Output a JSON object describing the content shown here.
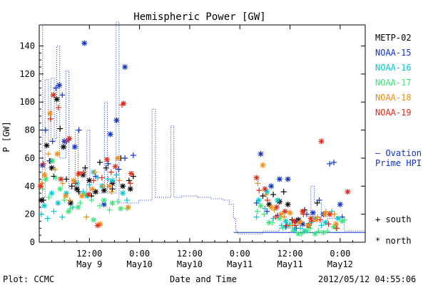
{
  "chart_data": {
    "type": "scatter",
    "title": "Hemispheric Power [GW]",
    "ylabel": "P [GW]",
    "xlabel": "Date and Time",
    "ylim": [
      0,
      155
    ],
    "yticks": [
      0,
      20,
      40,
      60,
      80,
      100,
      120,
      140
    ],
    "xlim_hours": [
      0,
      78
    ],
    "xticks": [
      {
        "hour": 12,
        "time": "12:00",
        "date": "May 9"
      },
      {
        "hour": 24,
        "time": "0:00",
        "date": "May10"
      },
      {
        "hour": 36,
        "time": "12:00",
        "date": "May10"
      },
      {
        "hour": 48,
        "time": "0:00",
        "date": "May11"
      },
      {
        "hour": 60,
        "time": "12:00",
        "date": "May11"
      },
      {
        "hour": 72,
        "time": "0:00",
        "date": "May12"
      }
    ],
    "footer_left": "Plot: CCMC",
    "footer_right": "2012/05/12 04:55:06",
    "ovation_label_1": "— Ovation",
    "ovation_label_2": "Prime HPI",
    "marker_south_label": "+ south",
    "marker_north_label": "* north",
    "series": [
      {
        "name": "METP-02",
        "color": "#000000",
        "south": [
          [
            1.0,
            30
          ],
          [
            2.5,
            58
          ],
          [
            3.5,
            47
          ],
          [
            5.0,
            81
          ],
          [
            6.5,
            45
          ],
          [
            7.8,
            40
          ],
          [
            9.5,
            36
          ],
          [
            11.0,
            53
          ],
          [
            12.5,
            33
          ],
          [
            14.5,
            57
          ],
          [
            16.0,
            53
          ],
          [
            17.5,
            38
          ],
          [
            19.5,
            60
          ],
          [
            21.5,
            44
          ],
          [
            22.5,
            47
          ],
          [
            53.5,
            33
          ],
          [
            56.0,
            34
          ],
          [
            58.5,
            36
          ],
          [
            60.5,
            16
          ],
          [
            63.5,
            23
          ],
          [
            66.5,
            28
          ]
        ],
        "north": [
          [
            0.5,
            30
          ],
          [
            1.8,
            69
          ],
          [
            3.0,
            53
          ],
          [
            4.2,
            102
          ],
          [
            5.8,
            68
          ],
          [
            7.5,
            28
          ],
          [
            9.0,
            38
          ],
          [
            10.5,
            48
          ],
          [
            12.0,
            44
          ],
          [
            13.5,
            36
          ],
          [
            15.5,
            37
          ],
          [
            17.5,
            42
          ],
          [
            20.0,
            40
          ],
          [
            21.8,
            38
          ],
          [
            55.0,
            27
          ],
          [
            57.5,
            29
          ],
          [
            59.5,
            27
          ],
          [
            62.0,
            16
          ],
          [
            64.5,
            12
          ]
        ]
      },
      {
        "name": "NOAA-15",
        "color": "#1032c8",
        "south": [
          [
            1.5,
            80
          ],
          [
            3.2,
            72
          ],
          [
            4.0,
            110
          ],
          [
            5.5,
            105
          ],
          [
            7.0,
            73
          ],
          [
            9.5,
            80
          ],
          [
            13.5,
            47
          ],
          [
            16.5,
            56
          ],
          [
            19.0,
            52
          ],
          [
            20.5,
            60
          ],
          [
            22.5,
            62
          ],
          [
            52.0,
            28
          ],
          [
            54.5,
            22
          ],
          [
            57.0,
            19
          ],
          [
            59.0,
            11
          ],
          [
            61.5,
            10
          ],
          [
            64.0,
            20
          ],
          [
            67.0,
            30
          ],
          [
            69.5,
            56
          ],
          [
            70.5,
            57
          ],
          [
            72.5,
            18
          ]
        ],
        "north": [
          [
            0.8,
            55
          ],
          [
            2.8,
            58
          ],
          [
            4.8,
            112
          ],
          [
            6.0,
            72
          ],
          [
            8.5,
            68
          ],
          [
            10.8,
            142
          ],
          [
            15.5,
            27
          ],
          [
            17.0,
            77
          ],
          [
            18.5,
            87
          ],
          [
            20.5,
            125
          ],
          [
            53.0,
            63
          ],
          [
            55.5,
            40
          ],
          [
            57.5,
            45
          ],
          [
            59.5,
            45
          ],
          [
            61.5,
            15
          ],
          [
            63.0,
            13
          ],
          [
            65.5,
            21
          ],
          [
            68.0,
            20
          ],
          [
            72.0,
            27
          ]
        ]
      },
      {
        "name": "NOAA-16",
        "color": "#00c8d2",
        "south": [
          [
            0.5,
            20
          ],
          [
            2.0,
            17
          ],
          [
            3.5,
            22
          ],
          [
            5.5,
            18
          ],
          [
            8.0,
            25
          ],
          [
            10.5,
            36
          ],
          [
            12.0,
            41
          ],
          [
            14.0,
            46
          ],
          [
            16.5,
            45
          ],
          [
            18.5,
            48
          ],
          [
            21.0,
            30
          ],
          [
            52.0,
            18
          ],
          [
            54.0,
            24
          ],
          [
            56.0,
            17
          ],
          [
            58.0,
            12
          ],
          [
            60.0,
            13
          ],
          [
            62.5,
            10
          ],
          [
            65.0,
            14
          ],
          [
            67.5,
            12
          ],
          [
            70.0,
            22
          ]
        ],
        "north": [
          [
            1.2,
            26
          ],
          [
            3.0,
            35
          ],
          [
            4.5,
            28
          ],
          [
            6.5,
            35
          ],
          [
            9.0,
            42
          ],
          [
            11.5,
            33
          ],
          [
            13.0,
            50
          ],
          [
            15.0,
            40
          ],
          [
            17.5,
            44
          ],
          [
            20.0,
            35
          ],
          [
            52.5,
            30
          ],
          [
            54.5,
            36
          ],
          [
            57.0,
            30
          ],
          [
            59.0,
            15
          ],
          [
            61.0,
            9
          ],
          [
            63.5,
            8
          ],
          [
            66.0,
            17
          ],
          [
            68.5,
            14
          ],
          [
            71.5,
            17
          ]
        ]
      },
      {
        "name": "NOAA-17",
        "color": "#3ce678",
        "south": [
          [
            0.8,
            38
          ],
          [
            2.3,
            32
          ],
          [
            4.0,
            46
          ],
          [
            6.0,
            30
          ],
          [
            7.5,
            24
          ],
          [
            9.8,
            28
          ],
          [
            12.5,
            30
          ],
          [
            14.5,
            26
          ],
          [
            16.8,
            23
          ],
          [
            18.8,
            29
          ],
          [
            21.0,
            24
          ],
          [
            52.2,
            22
          ],
          [
            53.8,
            20
          ],
          [
            55.8,
            14
          ],
          [
            58.3,
            10
          ],
          [
            60.8,
            8
          ],
          [
            62.8,
            6
          ],
          [
            64.8,
            10
          ],
          [
            66.8,
            8
          ],
          [
            69.0,
            8
          ],
          [
            71.0,
            10
          ],
          [
            73.0,
            16
          ]
        ],
        "north": [
          [
            1.6,
            45
          ],
          [
            3.2,
            58
          ],
          [
            5.0,
            38
          ],
          [
            7.0,
            22
          ],
          [
            9.3,
            25
          ],
          [
            11.0,
            34
          ],
          [
            13.0,
            16
          ],
          [
            15.5,
            30
          ],
          [
            17.5,
            28
          ],
          [
            19.5,
            24
          ],
          [
            53.0,
            26
          ],
          [
            55.0,
            14
          ],
          [
            57.5,
            17
          ],
          [
            59.8,
            12
          ],
          [
            62.0,
            6
          ],
          [
            64.0,
            8
          ],
          [
            66.0,
            6
          ],
          [
            68.0,
            7
          ],
          [
            70.5,
            11
          ],
          [
            72.5,
            15
          ]
        ]
      },
      {
        "name": "NOAA-18",
        "color": "#f08c14",
        "south": [
          [
            0.6,
            42
          ],
          [
            2.2,
            63
          ],
          [
            3.8,
            52
          ],
          [
            5.6,
            42
          ],
          [
            7.3,
            30
          ],
          [
            9.2,
            48
          ],
          [
            11.3,
            18
          ],
          [
            13.3,
            50
          ],
          [
            15.2,
            40
          ],
          [
            17.3,
            36
          ],
          [
            19.2,
            44
          ],
          [
            52.3,
            42
          ],
          [
            54.3,
            34
          ],
          [
            56.3,
            23
          ],
          [
            58.6,
            18
          ],
          [
            60.6,
            12
          ],
          [
            62.6,
            15
          ],
          [
            64.6,
            13
          ],
          [
            66.6,
            18
          ],
          [
            68.6,
            22
          ],
          [
            70.6,
            20
          ]
        ],
        "north": [
          [
            1.3,
            48
          ],
          [
            2.6,
            92
          ],
          [
            4.3,
            63
          ],
          [
            6.3,
            33
          ],
          [
            8.2,
            44
          ],
          [
            10.2,
            33
          ],
          [
            12.7,
            38
          ],
          [
            14.6,
            13
          ],
          [
            16.8,
            40
          ],
          [
            18.8,
            60
          ],
          [
            21.3,
            25
          ],
          [
            53.5,
            55
          ],
          [
            55.5,
            25
          ],
          [
            57.8,
            20
          ],
          [
            60.0,
            21
          ],
          [
            62.3,
            14
          ],
          [
            64.3,
            12
          ],
          [
            66.3,
            16
          ],
          [
            68.3,
            20
          ],
          [
            71.0,
            13
          ]
        ]
      },
      {
        "name": "NOAA-19",
        "color": "#e62814",
        "south": [
          [
            1.0,
            56
          ],
          [
            2.7,
            88
          ],
          [
            4.6,
            96
          ],
          [
            6.6,
            72
          ],
          [
            8.6,
            42
          ],
          [
            10.6,
            50
          ],
          [
            13.0,
            44
          ],
          [
            15.0,
            46
          ],
          [
            17.2,
            50
          ],
          [
            19.8,
            98
          ],
          [
            21.8,
            42
          ],
          [
            52.6,
            37
          ],
          [
            54.6,
            30
          ],
          [
            56.6,
            18
          ],
          [
            59.2,
            12
          ],
          [
            61.2,
            12
          ],
          [
            63.2,
            20
          ],
          [
            65.2,
            15
          ],
          [
            67.2,
            16
          ],
          [
            69.2,
            13
          ],
          [
            71.2,
            10
          ]
        ],
        "north": [
          [
            0.3,
            40
          ],
          [
            3.4,
            105
          ],
          [
            5.2,
            45
          ],
          [
            7.2,
            74
          ],
          [
            9.5,
            49
          ],
          [
            11.8,
            34
          ],
          [
            14.0,
            12
          ],
          [
            16.2,
            59
          ],
          [
            18.2,
            54
          ],
          [
            20.2,
            99
          ],
          [
            22.0,
            49
          ],
          [
            52.0,
            46
          ],
          [
            54.0,
            38
          ],
          [
            56.8,
            25
          ],
          [
            58.8,
            22
          ],
          [
            61.0,
            15
          ],
          [
            63.0,
            22
          ],
          [
            65.0,
            17
          ],
          [
            67.5,
            72
          ],
          [
            69.5,
            20
          ],
          [
            73.8,
            36
          ]
        ]
      }
    ],
    "ovation": [
      [
        0,
        155
      ],
      [
        0.8,
        155
      ],
      [
        0.8,
        32
      ],
      [
        1.4,
        32
      ],
      [
        1.4,
        116
      ],
      [
        2.2,
        116
      ],
      [
        2.2,
        72
      ],
      [
        2.8,
        72
      ],
      [
        2.8,
        117
      ],
      [
        3.6,
        117
      ],
      [
        3.6,
        74
      ],
      [
        4.2,
        74
      ],
      [
        4.2,
        140
      ],
      [
        4.9,
        140
      ],
      [
        4.9,
        60
      ],
      [
        6.4,
        60
      ],
      [
        6.4,
        122
      ],
      [
        7.1,
        122
      ],
      [
        7.1,
        38
      ],
      [
        8.6,
        38
      ],
      [
        8.6,
        80
      ],
      [
        9.3,
        80
      ],
      [
        9.3,
        35
      ],
      [
        11.4,
        35
      ],
      [
        11.4,
        80
      ],
      [
        12.1,
        80
      ],
      [
        12.1,
        35
      ],
      [
        15.6,
        35
      ],
      [
        15.6,
        100
      ],
      [
        16.3,
        100
      ],
      [
        16.3,
        35
      ],
      [
        18.4,
        35
      ],
      [
        18.4,
        157
      ],
      [
        19.1,
        157
      ],
      [
        19.1,
        28
      ],
      [
        23.8,
        28
      ],
      [
        23.8,
        30
      ],
      [
        27.0,
        30
      ],
      [
        27.0,
        95
      ],
      [
        27.8,
        95
      ],
      [
        27.8,
        32
      ],
      [
        31.5,
        32
      ],
      [
        31.5,
        83
      ],
      [
        32.2,
        83
      ],
      [
        32.2,
        32
      ],
      [
        34.0,
        32
      ],
      [
        34.0,
        33
      ],
      [
        38.0,
        33
      ],
      [
        38.0,
        32
      ],
      [
        41.0,
        32
      ],
      [
        41.0,
        31
      ],
      [
        44.0,
        31
      ],
      [
        44.0,
        30
      ],
      [
        45.5,
        30
      ],
      [
        45.5,
        27
      ],
      [
        46.5,
        27
      ],
      [
        46.5,
        17
      ],
      [
        47.0,
        17
      ],
      [
        47.0,
        8
      ],
      [
        47.5,
        8
      ],
      [
        47.5,
        6
      ],
      [
        53.5,
        6
      ],
      [
        53.5,
        8
      ],
      [
        57.5,
        8
      ],
      [
        57.5,
        10
      ],
      [
        60.5,
        10
      ],
      [
        60.5,
        12
      ],
      [
        65.0,
        12
      ],
      [
        65.0,
        40
      ],
      [
        65.8,
        40
      ],
      [
        65.8,
        28
      ],
      [
        67.5,
        28
      ],
      [
        67.5,
        15
      ],
      [
        69.0,
        15
      ],
      [
        69.0,
        17
      ],
      [
        71.0,
        17
      ],
      [
        71.0,
        18
      ],
      [
        73.0,
        18
      ],
      [
        73.0,
        8
      ],
      [
        78.0,
        8
      ]
    ],
    "ovation_line": [
      [
        46.5,
        7
      ],
      [
        78.0,
        7
      ]
    ]
  }
}
